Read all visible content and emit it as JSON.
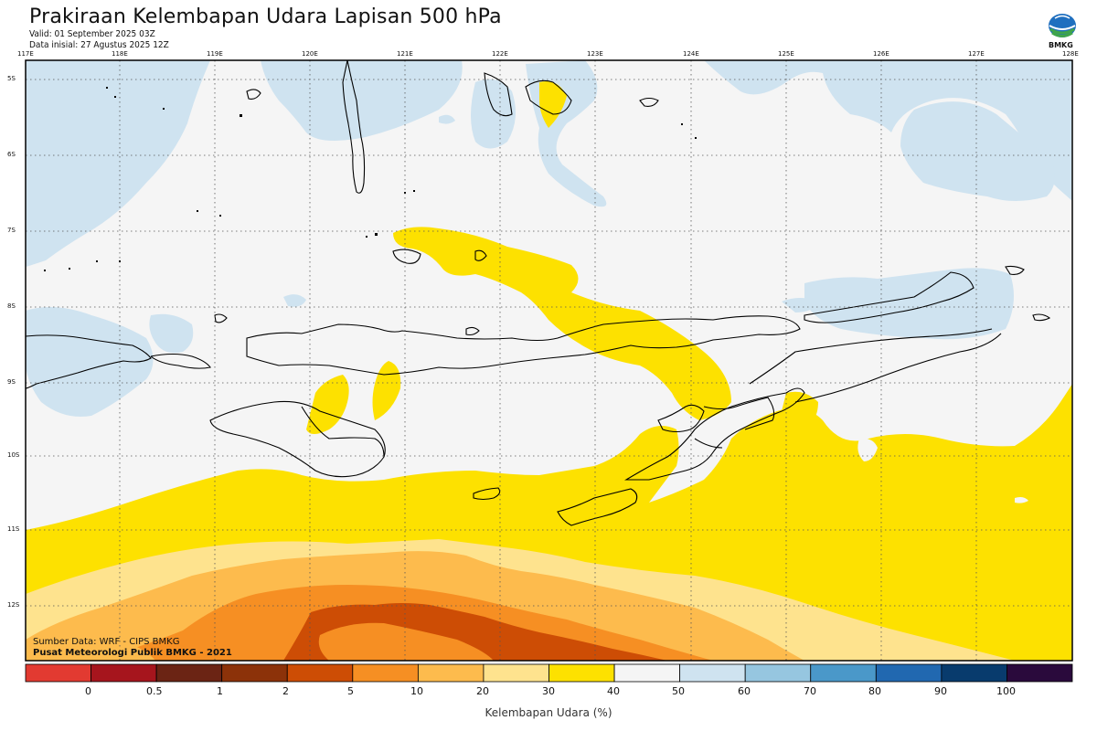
{
  "header": {
    "title": "Prakiraan Kelembapan Udara Lapisan 500 hPa",
    "valid": "Valid: 01 September 2025 03Z",
    "init": "Data inisial: 27 Agustus 2025 12Z"
  },
  "logo": {
    "text": "BMKG",
    "icon": "bmkg-logo-icon"
  },
  "axes": {
    "lon_labels": [
      "117E",
      "118E",
      "119E",
      "120E",
      "121E",
      "122E",
      "123E",
      "124E",
      "125E",
      "126E",
      "127E",
      "128E"
    ],
    "lat_labels": [
      "5S",
      "6S",
      "7S",
      "8S",
      "9S",
      "10S",
      "11S",
      "12S"
    ]
  },
  "credits": {
    "source": "Sumber Data: WRF - CIPS BMKG",
    "agency": "Pusat Meteorologi Publik BMKG - 2021"
  },
  "colorbar": {
    "title": "Kelembapan Udara (%)",
    "ticks": [
      "0",
      "0.5",
      "1",
      "2",
      "5",
      "10",
      "20",
      "30",
      "40",
      "50",
      "60",
      "70",
      "80",
      "90",
      "100"
    ],
    "colors": [
      "#e23a31",
      "#a6151d",
      "#6b2414",
      "#8c3209",
      "#cd4d05",
      "#f68f23",
      "#fdbb4d",
      "#fee38e",
      "#fde100",
      "#f5f5f5",
      "#cfe3f0",
      "#96c6e0",
      "#4a98c9",
      "#2168b0",
      "#083b6d",
      "#2a0a3c"
    ]
  },
  "map_colors": {
    "ocean_dry": "#f5f5f5",
    "humid_light_blue": "#cfe3f0",
    "yellow_30_40": "#fde100",
    "light_orange_20_30": "#fee38e",
    "orange_10_20": "#fdbb4d",
    "orange_5_10": "#f68f23",
    "dark_orange_2_5": "#cd4d05",
    "coastline": "#000000"
  }
}
